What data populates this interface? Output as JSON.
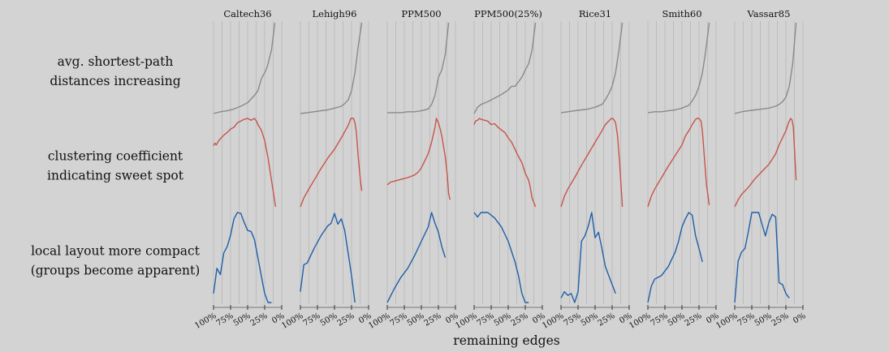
{
  "chart_data": {
    "type": "line",
    "datasets": [
      "Caltech36",
      "Lehigh96",
      "PPM500",
      "PPM500(25%)",
      "Rice31",
      "Smith60",
      "Vassar85"
    ],
    "xlabel": "remaining edges",
    "x_ticks": [
      "100%",
      "75%",
      "50%",
      "25%",
      "0%"
    ],
    "x_tick_values": [
      100,
      75,
      50,
      25,
      0
    ],
    "xlim": [
      100,
      0
    ],
    "grid": "vertical lines every 12.5%",
    "rows": [
      {
        "label_lines": [
          "avg. shortest-path",
          "distances increasing"
        ],
        "color": "#8a8a8a",
        "series": {
          "Caltech36": {
            "x": [
              100,
              90,
              80,
              70,
              60,
              50,
              40,
              35,
              30,
              25,
              22,
              20,
              15,
              10
            ],
            "y": [
              0.0,
              0.02,
              0.03,
              0.05,
              0.08,
              0.12,
              0.2,
              0.25,
              0.38,
              0.45,
              0.5,
              0.55,
              0.7,
              1.0
            ]
          },
          "Lehigh96": {
            "x": [
              100,
              90,
              80,
              70,
              60,
              50,
              40,
              35,
              30,
              25,
              20,
              15,
              10
            ],
            "y": [
              0.0,
              0.01,
              0.02,
              0.03,
              0.04,
              0.06,
              0.08,
              0.11,
              0.15,
              0.25,
              0.45,
              0.75,
              1.0
            ]
          },
          "PPM500": {
            "x": [
              100,
              90,
              80,
              70,
              60,
              50,
              40,
              35,
              30,
              25,
              20,
              15,
              10
            ],
            "y": [
              0.01,
              0.01,
              0.01,
              0.02,
              0.02,
              0.03,
              0.05,
              0.1,
              0.2,
              0.4,
              0.48,
              0.65,
              1.0
            ]
          },
          "PPM500(25%)": {
            "x": [
              100,
              95,
              90,
              80,
              70,
              60,
              50,
              45,
              40,
              35,
              30,
              25,
              20,
              15,
              10
            ],
            "y": [
              0.0,
              0.07,
              0.1,
              0.13,
              0.17,
              0.21,
              0.26,
              0.3,
              0.3,
              0.35,
              0.4,
              0.48,
              0.55,
              0.7,
              1.0
            ]
          },
          "Rice31": {
            "x": [
              100,
              90,
              80,
              70,
              60,
              50,
              40,
              35,
              30,
              25,
              20,
              15,
              10
            ],
            "y": [
              0.01,
              0.02,
              0.03,
              0.04,
              0.05,
              0.07,
              0.1,
              0.15,
              0.22,
              0.3,
              0.45,
              0.7,
              1.0
            ]
          },
          "Smith60": {
            "x": [
              100,
              90,
              80,
              70,
              60,
              50,
              40,
              35,
              30,
              25,
              20,
              15,
              10
            ],
            "y": [
              0.01,
              0.02,
              0.02,
              0.03,
              0.04,
              0.06,
              0.09,
              0.14,
              0.2,
              0.3,
              0.45,
              0.7,
              1.0
            ]
          },
          "Vassar85": {
            "x": [
              100,
              90,
              80,
              70,
              60,
              50,
              40,
              35,
              30,
              25,
              20,
              15,
              10
            ],
            "y": [
              0.0,
              0.02,
              0.03,
              0.04,
              0.05,
              0.06,
              0.08,
              0.1,
              0.13,
              0.18,
              0.3,
              0.55,
              1.0
            ]
          }
        }
      },
      {
        "label_lines": [
          "clustering coefficient",
          "indicating sweet spot"
        ],
        "color": "#c8544a",
        "series": {
          "Caltech36": {
            "x": [
              100,
              98,
              96,
              93,
              90,
              85,
              80,
              75,
              70,
              65,
              60,
              55,
              50,
              45,
              40,
              37,
              35,
              30,
              25,
              20,
              15,
              12,
              9
            ],
            "y": [
              0.69,
              0.72,
              0.7,
              0.74,
              0.77,
              0.81,
              0.84,
              0.88,
              0.9,
              0.95,
              0.97,
              0.99,
              1.0,
              0.98,
              1.0,
              0.97,
              0.93,
              0.87,
              0.75,
              0.55,
              0.3,
              0.15,
              0.0
            ]
          },
          "Lehigh96": {
            "x": [
              100,
              95,
              90,
              80,
              70,
              60,
              50,
              40,
              35,
              30,
              28,
              26,
              24,
              22,
              20,
              18,
              15,
              12,
              10
            ],
            "y": [
              0.0,
              0.1,
              0.17,
              0.3,
              0.43,
              0.55,
              0.65,
              0.78,
              0.85,
              0.92,
              0.96,
              1.0,
              1.0,
              1.0,
              0.95,
              0.85,
              0.55,
              0.3,
              0.18
            ]
          },
          "PPM500": {
            "x": [
              100,
              95,
              90,
              80,
              70,
              60,
              55,
              50,
              45,
              40,
              35,
              30,
              28,
              25,
              22,
              20,
              15,
              12,
              10,
              8
            ],
            "y": [
              0.25,
              0.28,
              0.29,
              0.31,
              0.33,
              0.36,
              0.39,
              0.44,
              0.52,
              0.6,
              0.73,
              0.9,
              1.0,
              0.95,
              0.87,
              0.8,
              0.57,
              0.36,
              0.15,
              0.08
            ]
          },
          "PPM500(25%)": {
            "x": [
              100,
              98,
              95,
              92,
              90,
              85,
              80,
              75,
              70,
              65,
              60,
              55,
              50,
              45,
              40,
              35,
              30,
              25,
              20,
              18,
              15,
              10
            ],
            "y": [
              0.93,
              0.97,
              0.98,
              1.0,
              0.99,
              0.98,
              0.97,
              0.93,
              0.94,
              0.9,
              0.87,
              0.84,
              0.78,
              0.73,
              0.65,
              0.57,
              0.5,
              0.38,
              0.3,
              0.23,
              0.1,
              0.0
            ]
          },
          "Rice31": {
            "x": [
              100,
              95,
              90,
              80,
              70,
              60,
              50,
              40,
              35,
              30,
              26,
              24,
              22,
              20,
              17,
              14,
              10
            ],
            "y": [
              0.0,
              0.12,
              0.2,
              0.33,
              0.47,
              0.6,
              0.73,
              0.86,
              0.93,
              0.97,
              1.0,
              1.0,
              0.98,
              0.95,
              0.8,
              0.5,
              0.0
            ]
          },
          "Smith60": {
            "x": [
              100,
              95,
              90,
              80,
              70,
              60,
              50,
              45,
              40,
              35,
              30,
              28,
              25,
              22,
              20,
              17,
              14,
              10
            ],
            "y": [
              0.0,
              0.12,
              0.2,
              0.33,
              0.46,
              0.58,
              0.7,
              0.8,
              0.86,
              0.93,
              0.99,
              1.0,
              1.0,
              0.97,
              0.85,
              0.55,
              0.25,
              0.02
            ]
          },
          "Vassar85": {
            "x": [
              100,
              95,
              90,
              80,
              70,
              60,
              50,
              40,
              35,
              30,
              25,
              22,
              20,
              18,
              16,
              14,
              12,
              10
            ],
            "y": [
              0.0,
              0.08,
              0.14,
              0.22,
              0.32,
              0.4,
              0.48,
              0.6,
              0.7,
              0.78,
              0.86,
              0.93,
              0.97,
              1.0,
              0.98,
              0.9,
              0.6,
              0.3
            ]
          }
        }
      },
      {
        "label_lines": [
          "local layout more compact",
          "(groups become apparent)"
        ],
        "color": "#1f5fa8",
        "series": {
          "Caltech36": {
            "x": [
              100,
              95,
              90,
              85,
              80,
              75,
              70,
              65,
              60,
              55,
              50,
              45,
              40,
              35,
              30,
              25,
              20,
              15
            ],
            "y": [
              0.1,
              0.38,
              0.31,
              0.55,
              0.62,
              0.75,
              0.93,
              1.0,
              0.99,
              0.89,
              0.8,
              0.79,
              0.7,
              0.5,
              0.3,
              0.1,
              0.0,
              0.0
            ]
          },
          "Lehigh96": {
            "x": [
              100,
              95,
              90,
              80,
              70,
              60,
              55,
              50,
              45,
              40,
              35,
              30,
              25,
              20
            ],
            "y": [
              0.12,
              0.42,
              0.44,
              0.6,
              0.74,
              0.85,
              0.88,
              0.99,
              0.87,
              0.93,
              0.8,
              0.55,
              0.3,
              0.0
            ]
          },
          "PPM500": {
            "x": [
              100,
              90,
              80,
              70,
              60,
              50,
              40,
              35,
              30,
              25,
              20,
              15
            ],
            "y": [
              0.0,
              0.15,
              0.28,
              0.38,
              0.52,
              0.68,
              0.84,
              1.0,
              0.88,
              0.78,
              0.62,
              0.5
            ]
          },
          "PPM500(25%)": {
            "x": [
              100,
              95,
              90,
              85,
              80,
              75,
              70,
              60,
              50,
              40,
              35,
              30,
              25,
              20
            ],
            "y": [
              1.0,
              0.95,
              1.0,
              1.0,
              1.0,
              0.97,
              0.94,
              0.84,
              0.68,
              0.45,
              0.3,
              0.1,
              0.0,
              0.0
            ]
          },
          "Rice31": {
            "x": [
              100,
              95,
              90,
              85,
              80,
              75,
              70,
              65,
              60,
              55,
              50,
              45,
              40,
              35,
              30,
              25,
              20
            ],
            "y": [
              0.05,
              0.12,
              0.08,
              0.1,
              0.0,
              0.12,
              0.68,
              0.74,
              0.85,
              1.0,
              0.72,
              0.78,
              0.6,
              0.4,
              0.3,
              0.2,
              0.1
            ]
          },
          "Smith60": {
            "x": [
              100,
              95,
              90,
              80,
              70,
              60,
              55,
              50,
              45,
              40,
              35,
              30,
              25,
              20
            ],
            "y": [
              0.0,
              0.18,
              0.26,
              0.3,
              0.4,
              0.56,
              0.68,
              0.84,
              0.93,
              1.0,
              0.97,
              0.74,
              0.6,
              0.45
            ]
          },
          "Vassar85": {
            "x": [
              100,
              95,
              90,
              85,
              80,
              75,
              70,
              65,
              60,
              55,
              50,
              45,
              40,
              35,
              30,
              25,
              20
            ],
            "y": [
              0.0,
              0.46,
              0.56,
              0.6,
              0.79,
              1.0,
              1.0,
              1.0,
              0.87,
              0.74,
              0.89,
              0.98,
              0.95,
              0.22,
              0.2,
              0.1,
              0.05
            ]
          }
        }
      }
    ]
  }
}
